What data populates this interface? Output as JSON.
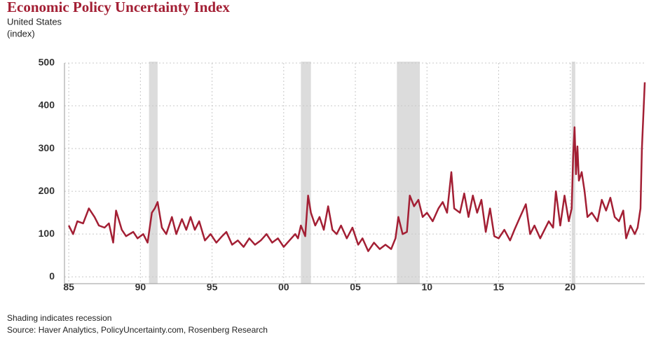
{
  "chart_data": {
    "type": "line",
    "title": "Economic Policy Uncertainty Index",
    "subtitle": "United States",
    "y_label": "(index)",
    "notes": [
      "Shading indicates recession",
      "Source: Haver Analytics, PolicyUncertainty.com, Rosenberg Research"
    ],
    "color": "#a31f34",
    "recession_color": "#dcdcdc",
    "grid": true,
    "xlim": [
      1984.7,
      2025.2
    ],
    "ylim": [
      -16,
      500
    ],
    "xticks": [
      {
        "value": 1985,
        "label": "85"
      },
      {
        "value": 1990,
        "label": "90"
      },
      {
        "value": 1995,
        "label": "95"
      },
      {
        "value": 2000,
        "label": "00"
      },
      {
        "value": 2005,
        "label": "05"
      },
      {
        "value": 2010,
        "label": "10"
      },
      {
        "value": 2015,
        "label": "15"
      },
      {
        "value": 2020,
        "label": "20"
      }
    ],
    "yticks": [
      0,
      100,
      200,
      300,
      400,
      500
    ],
    "recessions": [
      [
        1990.6,
        1991.2
      ],
      [
        2001.2,
        2001.9
      ],
      [
        2007.9,
        2009.5
      ],
      [
        2020.1,
        2020.35
      ]
    ],
    "x": [
      1985.0,
      1985.3,
      1985.6,
      1986.0,
      1986.4,
      1986.8,
      1987.1,
      1987.5,
      1987.8,
      1988.1,
      1988.3,
      1988.7,
      1989.0,
      1989.5,
      1989.8,
      1990.2,
      1990.5,
      1990.8,
      1991.0,
      1991.2,
      1991.5,
      1991.8,
      1992.2,
      1992.5,
      1992.9,
      1993.2,
      1993.5,
      1993.8,
      1994.1,
      1994.5,
      1994.9,
      1995.3,
      1995.7,
      1996.0,
      1996.4,
      1996.8,
      1997.2,
      1997.6,
      1998.0,
      1998.4,
      1998.8,
      1999.2,
      1999.6,
      2000.0,
      2000.4,
      2000.8,
      2001.0,
      2001.2,
      2001.5,
      2001.7,
      2001.9,
      2002.2,
      2002.5,
      2002.8,
      2003.1,
      2003.4,
      2003.7,
      2004.0,
      2004.4,
      2004.8,
      2005.2,
      2005.5,
      2005.9,
      2006.3,
      2006.7,
      2007.1,
      2007.5,
      2007.8,
      2008.0,
      2008.3,
      2008.6,
      2008.8,
      2009.1,
      2009.4,
      2009.7,
      2010.0,
      2010.4,
      2010.8,
      2011.1,
      2011.4,
      2011.7,
      2011.9,
      2012.3,
      2012.6,
      2012.9,
      2013.2,
      2013.5,
      2013.8,
      2014.1,
      2014.4,
      2014.7,
      2015.0,
      2015.4,
      2015.8,
      2016.1,
      2016.5,
      2016.9,
      2017.2,
      2017.5,
      2017.9,
      2018.2,
      2018.5,
      2018.8,
      2019.0,
      2019.3,
      2019.6,
      2019.9,
      2020.1,
      2020.2,
      2020.3,
      2020.4,
      2020.5,
      2020.6,
      2020.8,
      2021.0,
      2021.2,
      2021.5,
      2021.9,
      2022.2,
      2022.5,
      2022.8,
      2023.1,
      2023.4,
      2023.7,
      2023.9,
      2024.2,
      2024.5,
      2024.7,
      2024.9,
      2025.0,
      2025.2
    ],
    "values": [
      120,
      100,
      130,
      125,
      160,
      140,
      120,
      115,
      125,
      80,
      155,
      110,
      95,
      105,
      90,
      100,
      80,
      150,
      160,
      175,
      115,
      100,
      140,
      100,
      135,
      110,
      140,
      110,
      130,
      85,
      100,
      80,
      95,
      105,
      75,
      85,
      70,
      90,
      75,
      85,
      100,
      80,
      90,
      70,
      85,
      100,
      90,
      120,
      95,
      190,
      150,
      120,
      140,
      110,
      165,
      110,
      100,
      120,
      90,
      115,
      75,
      90,
      60,
      80,
      65,
      75,
      65,
      90,
      140,
      100,
      105,
      190,
      165,
      180,
      140,
      150,
      130,
      160,
      175,
      150,
      245,
      160,
      150,
      195,
      140,
      190,
      150,
      180,
      105,
      160,
      95,
      90,
      110,
      85,
      110,
      140,
      170,
      100,
      120,
      90,
      110,
      130,
      115,
      200,
      120,
      190,
      130,
      160,
      280,
      350,
      240,
      305,
      225,
      245,
      200,
      140,
      150,
      130,
      180,
      155,
      185,
      140,
      130,
      155,
      90,
      120,
      100,
      115,
      160,
      300,
      455
    ]
  }
}
